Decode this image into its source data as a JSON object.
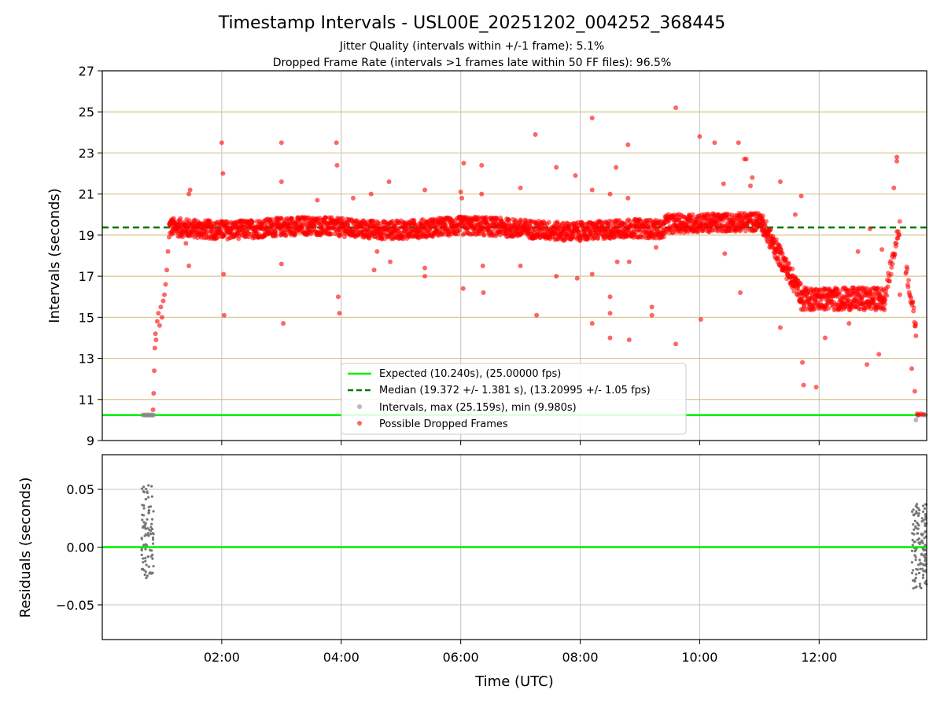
{
  "chart_data": [
    {
      "type": "scatter",
      "title": "Timestamp Intervals - USL00E_20251202_004252_368445",
      "subtitle_lines": [
        "Jitter Quality (intervals within +/-1 frame): 5.1%",
        "Dropped Frame Rate (intervals >1 frames late within 50 FF files): 96.5%"
      ],
      "xlabel": "",
      "ylabel": "Intervals (seconds)",
      "xlim_hours": [
        0.0,
        13.8
      ],
      "ylim": [
        9,
        27
      ],
      "yticks": [
        9,
        11,
        13,
        15,
        17,
        19,
        21,
        23,
        25,
        27
      ],
      "ytick_labels": [
        "9",
        "11",
        "13",
        "15",
        "17",
        "19",
        "21",
        "23",
        "25",
        "27"
      ],
      "xticks_hours": [
        2,
        4,
        6,
        8,
        10,
        12
      ],
      "expected_interval": 10.24,
      "median_interval": 19.372,
      "gridlines_y": [
        11,
        13,
        15,
        17,
        19,
        21,
        23,
        25
      ],
      "grid_x": true,
      "legend_position": "lower-center",
      "legend": [
        {
          "label": "Expected (10.240s), (25.00000 fps)",
          "style": "line",
          "color": "#00ee00"
        },
        {
          "label": "Median (19.372 +/- 1.381 s), (13.20995 +/- 1.05 fps)",
          "style": "dashed",
          "color": "#007700"
        },
        {
          "label": "Intervals, max (25.159s), min (9.980s)",
          "style": "marker",
          "color": "#888888"
        },
        {
          "label": "Possible Dropped Frames",
          "style": "marker",
          "color": "#ff0000"
        }
      ],
      "series": [
        {
          "name": "Intervals",
          "color": "#888888",
          "points": [
            [
              0.68,
              10.24
            ],
            [
              0.7,
              10.25
            ],
            [
              0.72,
              10.23
            ],
            [
              0.74,
              10.24
            ],
            [
              0.76,
              10.26
            ],
            [
              0.78,
              10.22
            ],
            [
              0.8,
              10.24
            ],
            [
              0.82,
              10.25
            ],
            [
              0.84,
              10.23
            ],
            [
              0.86,
              10.24
            ],
            [
              13.62,
              10.0
            ],
            [
              13.65,
              10.22
            ],
            [
              13.7,
              10.24
            ],
            [
              13.74,
              10.25
            ],
            [
              13.78,
              10.23
            ]
          ]
        },
        {
          "name": "Possible Dropped Frames",
          "color": "#ff0000",
          "points": [
            [
              0.85,
              10.5
            ],
            [
              0.86,
              11.3
            ],
            [
              0.87,
              12.4
            ],
            [
              0.88,
              13.5
            ],
            [
              0.89,
              14.2
            ],
            [
              0.9,
              13.9
            ],
            [
              0.92,
              14.8
            ],
            [
              0.94,
              15.2
            ],
            [
              0.96,
              14.6
            ],
            [
              0.98,
              15.5
            ],
            [
              1.0,
              15.0
            ],
            [
              1.02,
              15.8
            ],
            [
              1.04,
              16.1
            ],
            [
              1.06,
              16.6
            ],
            [
              1.08,
              17.3
            ],
            [
              1.1,
              18.2
            ],
            [
              1.12,
              18.9
            ],
            [
              1.14,
              19.5
            ],
            [
              1.16,
              19.7
            ],
            [
              1.4,
              18.6
            ],
            [
              1.45,
              17.5
            ],
            [
              1.45,
              21.0
            ],
            [
              1.47,
              21.2
            ],
            [
              2.0,
              23.5
            ],
            [
              2.02,
              22.0
            ],
            [
              2.03,
              17.1
            ],
            [
              2.04,
              15.1
            ],
            [
              3.0,
              23.5
            ],
            [
              3.0,
              21.6
            ],
            [
              3.0,
              17.6
            ],
            [
              3.03,
              14.7
            ],
            [
              3.6,
              20.7
            ],
            [
              3.92,
              23.5
            ],
            [
              3.93,
              22.4
            ],
            [
              3.95,
              16.0
            ],
            [
              3.97,
              15.2
            ],
            [
              4.2,
              20.8
            ],
            [
              4.5,
              21.0
            ],
            [
              4.55,
              17.3
            ],
            [
              4.6,
              18.2
            ],
            [
              4.8,
              21.6
            ],
            [
              4.82,
              17.7
            ],
            [
              5.4,
              21.2
            ],
            [
              5.4,
              17.4
            ],
            [
              5.4,
              17.0
            ],
            [
              6.0,
              21.1
            ],
            [
              6.02,
              20.8
            ],
            [
              6.04,
              16.4
            ],
            [
              6.05,
              22.5
            ],
            [
              6.35,
              22.4
            ],
            [
              6.35,
              21.0
            ],
            [
              6.37,
              17.5
            ],
            [
              6.38,
              16.2
            ],
            [
              7.0,
              21.3
            ],
            [
              7.0,
              17.5
            ],
            [
              7.25,
              23.9
            ],
            [
              7.27,
              15.1
            ],
            [
              7.6,
              17.0
            ],
            [
              7.6,
              22.3
            ],
            [
              7.92,
              21.9
            ],
            [
              7.95,
              16.9
            ],
            [
              8.2,
              24.7
            ],
            [
              8.2,
              21.2
            ],
            [
              8.2,
              17.1
            ],
            [
              8.2,
              14.7
            ],
            [
              8.5,
              21.0
            ],
            [
              8.5,
              14.0
            ],
            [
              8.5,
              16.0
            ],
            [
              8.5,
              15.2
            ],
            [
              8.6,
              22.3
            ],
            [
              8.62,
              17.7
            ],
            [
              8.8,
              23.4
            ],
            [
              8.8,
              20.8
            ],
            [
              8.82,
              17.7
            ],
            [
              8.82,
              13.9
            ],
            [
              9.2,
              15.5
            ],
            [
              9.2,
              15.1
            ],
            [
              9.27,
              18.4
            ],
            [
              9.6,
              25.2
            ],
            [
              9.6,
              13.7
            ],
            [
              10.0,
              23.8
            ],
            [
              10.02,
              14.9
            ],
            [
              10.25,
              23.5
            ],
            [
              10.4,
              21.5
            ],
            [
              10.42,
              18.1
            ],
            [
              10.65,
              23.5
            ],
            [
              10.68,
              16.2
            ],
            [
              10.75,
              22.7
            ],
            [
              10.78,
              22.7
            ],
            [
              10.85,
              21.4
            ],
            [
              10.88,
              21.8
            ],
            [
              11.35,
              21.6
            ],
            [
              11.35,
              14.5
            ],
            [
              11.6,
              20.0
            ],
            [
              11.7,
              20.9
            ],
            [
              11.72,
              12.8
            ],
            [
              11.74,
              11.7
            ],
            [
              11.95,
              11.6
            ],
            [
              12.1,
              14.0
            ],
            [
              12.5,
              14.7
            ],
            [
              12.65,
              18.2
            ],
            [
              12.8,
              12.7
            ],
            [
              12.85,
              19.3
            ],
            [
              13.0,
              13.2
            ],
            [
              13.05,
              18.3
            ],
            [
              13.25,
              21.3
            ],
            [
              13.3,
              22.8
            ],
            [
              13.3,
              22.6
            ],
            [
              13.35,
              16.1
            ],
            [
              13.55,
              12.5
            ],
            [
              13.6,
              11.4
            ],
            [
              13.62,
              14.1
            ],
            [
              13.64,
              10.3
            ],
            [
              13.66,
              10.25
            ],
            [
              13.7,
              10.3
            ],
            [
              13.75,
              10.28
            ]
          ]
        }
      ],
      "median_band_noise": 0.18
    },
    {
      "type": "scatter",
      "xlabel": "Time (UTC)",
      "ylabel": "Residuals (seconds)",
      "xlim_hours": [
        0.0,
        13.8
      ],
      "ylim": [
        -0.08,
        0.08
      ],
      "yticks": [
        -0.05,
        0.0,
        0.05
      ],
      "ytick_labels": [
        "−0.05",
        "0.00",
        "0.05"
      ],
      "xticks_hours": [
        2,
        4,
        6,
        8,
        10,
        12
      ],
      "xtick_labels": [
        "02:00",
        "04:00",
        "06:00",
        "08:00",
        "10:00",
        "12:00"
      ],
      "zero_line_color": "#00ee00",
      "series": [
        {
          "name": "Residuals",
          "color": "#777777",
          "clusters": [
            {
              "x_range": [
                0.66,
                0.86
              ],
              "y_range": [
                -0.028,
                0.054
              ],
              "count": 90
            },
            {
              "x_range": [
                13.55,
                13.8
              ],
              "y_range": [
                -0.036,
                0.038
              ],
              "count": 120
            }
          ]
        }
      ]
    }
  ]
}
